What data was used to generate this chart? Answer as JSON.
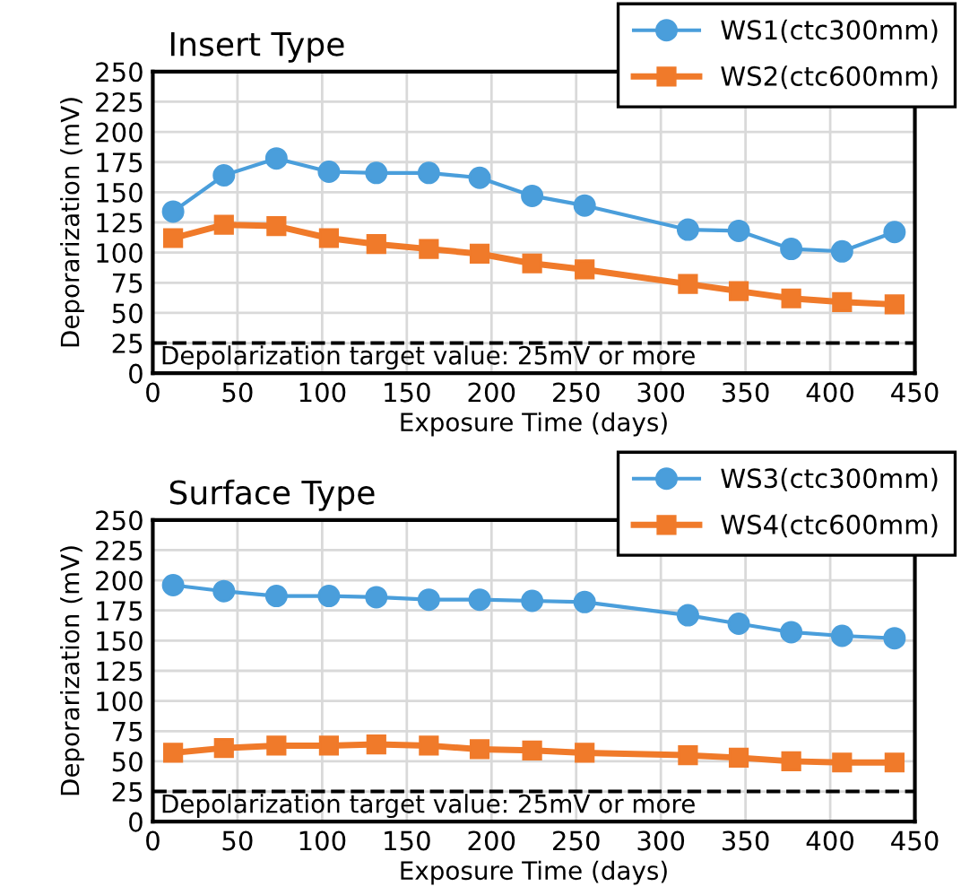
{
  "chart_data": [
    {
      "type": "line",
      "title": "Insert Type",
      "xlabel": "Exposure Time (days)",
      "ylabel": "Deporarization (mV)",
      "x": [
        12,
        42,
        73,
        104,
        132,
        163,
        193,
        224,
        255,
        316,
        346,
        377,
        407,
        438
      ],
      "series": [
        {
          "name": "WS1(ctc300mm)",
          "color": "#4a9edb",
          "marker": "circle",
          "values": [
            134,
            164,
            178,
            167,
            166,
            166,
            162,
            147,
            139,
            119,
            118,
            103,
            101,
            117
          ]
        },
        {
          "name": "WS2(ctc600mm)",
          "color": "#f07a2a",
          "marker": "square",
          "values": [
            112,
            123,
            122,
            112,
            107,
            103,
            99,
            91,
            86,
            74,
            68,
            62,
            59,
            57
          ]
        }
      ],
      "xlim": [
        0,
        450
      ],
      "xticks": [
        0,
        50,
        100,
        150,
        200,
        250,
        300,
        350,
        400,
        450
      ],
      "ylim": [
        0,
        250
      ],
      "yticks": [
        0,
        25,
        50,
        75,
        100,
        125,
        150,
        175,
        200,
        225,
        250
      ],
      "ref_lines": [
        {
          "axis": "y",
          "value": 25,
          "label": "Depolarization target value: 25mV or more",
          "color": "#000000",
          "line_style": "dashed"
        }
      ],
      "grid": true,
      "legend": "top right"
    },
    {
      "type": "line",
      "title": "Surface Type",
      "xlabel": "Exposure Time (days)",
      "ylabel": "Deporarization (mV)",
      "x": [
        12,
        42,
        73,
        104,
        132,
        163,
        193,
        224,
        255,
        316,
        346,
        377,
        407,
        438
      ],
      "series": [
        {
          "name": "WS3(ctc300mm)",
          "color": "#4a9edb",
          "marker": "circle",
          "values": [
            196,
            191,
            187,
            187,
            186,
            184,
            184,
            183,
            182,
            171,
            164,
            157,
            154,
            152
          ]
        },
        {
          "name": "WS4(ctc600mm)",
          "color": "#f07a2a",
          "marker": "square",
          "values": [
            57,
            61,
            63,
            63,
            64,
            63,
            60,
            59,
            57,
            55,
            53,
            50,
            49,
            49
          ]
        }
      ],
      "xlim": [
        0,
        450
      ],
      "xticks": [
        0,
        50,
        100,
        150,
        200,
        250,
        300,
        350,
        400,
        450
      ],
      "ylim": [
        0,
        250
      ],
      "yticks": [
        0,
        25,
        50,
        75,
        100,
        125,
        150,
        175,
        200,
        225,
        250
      ],
      "ref_lines": [
        {
          "axis": "y",
          "value": 25,
          "label": "Depolarization target value: 25mV or more",
          "color": "#000000",
          "line_style": "dashed"
        }
      ],
      "grid": true,
      "legend": "top right"
    }
  ]
}
